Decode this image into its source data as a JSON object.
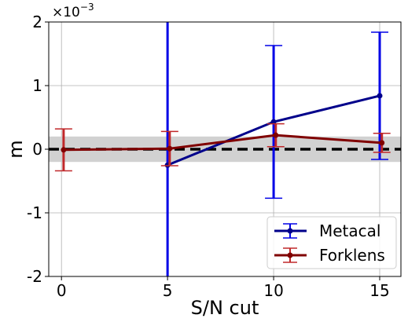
{
  "chart_data": {
    "type": "line",
    "xlabel": "S/N cut",
    "ylabel": "m",
    "offset_text": "×10",
    "offset_exponent": "−3",
    "xlim": [
      -0.6,
      16
    ],
    "ylim": [
      -2,
      2
    ],
    "xticks": [
      0,
      5,
      10,
      15
    ],
    "xtick_labels": [
      "0",
      "5",
      "10",
      "15"
    ],
    "yticks": [
      -2,
      -1,
      0,
      1,
      2
    ],
    "ytick_labels": [
      "-2",
      "-1",
      "0",
      "1",
      "2"
    ],
    "grid": true,
    "legend_position": "lower-right",
    "reference_line": 0,
    "band": [
      -0.2,
      0.2
    ],
    "band_color": "#cccccc",
    "series": [
      {
        "name": "Metacal",
        "color": "#00008b",
        "errcolor": "#0000e6",
        "x": [
          5,
          10,
          15
        ],
        "y": [
          -0.25,
          0.43,
          0.84
        ],
        "yerr": [
          2.5,
          1.2,
          1.0
        ]
      },
      {
        "name": "Forklens",
        "color": "#800000",
        "errcolor": "#c0282a",
        "x": [
          0.1,
          5.1,
          10.1,
          15.1
        ],
        "y": [
          -0.01,
          0.01,
          0.22,
          0.1
        ],
        "yerr": [
          0.33,
          0.27,
          0.18,
          0.15
        ]
      }
    ]
  }
}
